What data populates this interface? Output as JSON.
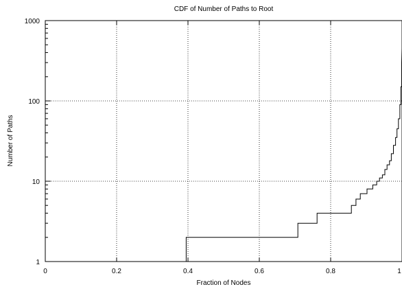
{
  "chart_data": {
    "type": "line",
    "title": "CDF of Number of Paths to Root",
    "xlabel": "Fraction of Nodes",
    "ylabel": "Number of Paths",
    "xlim": [
      0,
      1
    ],
    "ylim": [
      1,
      1000
    ],
    "y_scale": "log",
    "grid": true,
    "legend": "none",
    "x_ticks": [
      {
        "value": 0,
        "label": "0"
      },
      {
        "value": 0.2,
        "label": "0.2"
      },
      {
        "value": 0.4,
        "label": "0.4"
      },
      {
        "value": 0.6,
        "label": "0.6"
      },
      {
        "value": 0.8,
        "label": "0.8"
      },
      {
        "value": 1,
        "label": "1"
      }
    ],
    "y_ticks": [
      {
        "value": 1,
        "label": "1"
      },
      {
        "value": 10,
        "label": "10"
      },
      {
        "value": 100,
        "label": "100"
      },
      {
        "value": 1000,
        "label": "1000"
      }
    ],
    "series": [
      {
        "style": "step",
        "color": "#000000",
        "x": [
          0.395,
          0.395,
          0.708,
          0.708,
          0.762,
          0.762,
          0.858,
          0.858,
          0.871,
          0.871,
          0.883,
          0.883,
          0.902,
          0.902,
          0.918,
          0.918,
          0.929,
          0.929,
          0.937,
          0.937,
          0.945,
          0.945,
          0.952,
          0.952,
          0.958,
          0.958,
          0.965,
          0.965,
          0.97,
          0.97,
          0.976,
          0.976,
          0.982,
          0.982,
          0.986,
          0.986,
          0.99,
          0.99,
          0.994,
          0.994,
          0.997,
          0.997,
          0.999,
          0.999,
          1.0
        ],
        "y": [
          1,
          2,
          2,
          3,
          3,
          4,
          4,
          5,
          5,
          6,
          6,
          7,
          7,
          8,
          8,
          9,
          9,
          10,
          10,
          11,
          11,
          12,
          12,
          14,
          14,
          16,
          16,
          18,
          18,
          22,
          22,
          28,
          28,
          35,
          35,
          45,
          45,
          60,
          60,
          90,
          90,
          150,
          150,
          300,
          450
        ]
      }
    ]
  }
}
